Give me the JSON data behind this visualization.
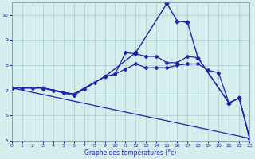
{
  "background_color": "#d4eeed",
  "grid_color": "#a8cccc",
  "line_color": "#2222aa",
  "xlabel": "Graphe des températures (°c)",
  "xlim": [
    0,
    23
  ],
  "ylim": [
    5,
    10.5
  ],
  "yticks": [
    5,
    6,
    7,
    8,
    9,
    10
  ],
  "xticks": [
    0,
    1,
    2,
    3,
    4,
    5,
    6,
    7,
    8,
    9,
    10,
    11,
    12,
    13,
    14,
    15,
    16,
    17,
    18,
    19,
    20,
    21,
    22,
    23
  ],
  "series": [
    {
      "x": [
        0,
        1,
        2,
        3,
        4,
        5,
        6,
        7,
        8,
        9,
        10,
        11,
        12,
        13,
        14,
        15,
        16,
        17,
        18,
        19,
        20,
        21,
        22,
        23
      ],
      "y": [
        7.1,
        7.1,
        7.1,
        7.1,
        7.0,
        6.9,
        6.8,
        7.05,
        7.3,
        7.55,
        7.65,
        7.85,
        8.05,
        7.9,
        7.9,
        7.9,
        8.0,
        8.05,
        8.05,
        7.8,
        7.7,
        6.5,
        6.7,
        5.1
      ],
      "marker": "D",
      "markersize": 2.0,
      "linewidth": 0.9
    },
    {
      "x": [
        0,
        3,
        6,
        9,
        12,
        15,
        16,
        17,
        18,
        21,
        22,
        23
      ],
      "y": [
        7.1,
        7.1,
        6.85,
        7.55,
        8.5,
        10.45,
        9.75,
        9.7,
        8.3,
        6.5,
        6.7,
        5.1
      ],
      "marker": "D",
      "markersize": 2.5,
      "linewidth": 1.0
    },
    {
      "x": [
        0,
        3,
        6,
        9,
        10,
        11,
        12,
        13,
        14,
        15,
        16,
        17,
        18,
        21,
        22,
        23
      ],
      "y": [
        7.1,
        7.1,
        6.85,
        7.55,
        7.65,
        8.5,
        8.45,
        8.35,
        8.35,
        8.1,
        8.1,
        8.35,
        8.3,
        6.5,
        6.7,
        5.1
      ],
      "marker": "D",
      "markersize": 2.0,
      "linewidth": 0.9
    },
    {
      "x": [
        0,
        23
      ],
      "y": [
        7.1,
        5.1
      ],
      "marker": null,
      "markersize": 0,
      "linewidth": 0.9
    }
  ]
}
